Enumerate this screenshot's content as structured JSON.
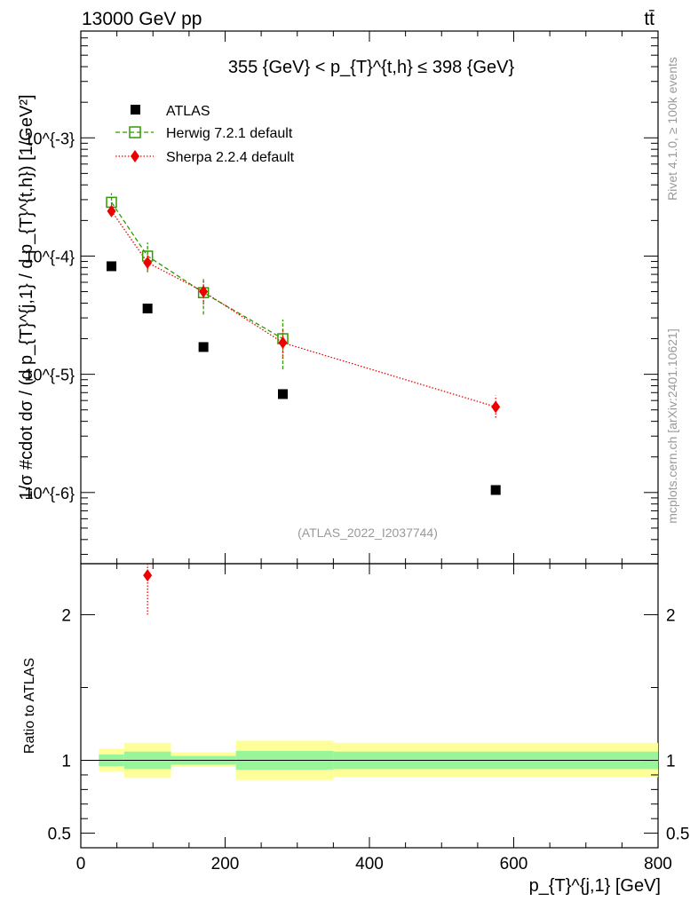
{
  "header": {
    "left": "13000 GeV pp",
    "right": "tt̄",
    "side_top": "Rivet 4.1.0, ≥ 100k events",
    "side_bottom": "mcplots.cern.ch [arXiv:2401.10621]"
  },
  "chart_data": [
    {
      "type": "scatter",
      "panel": "main",
      "title": "355 {GeV} < p_{T}^{t,h} ≤ 398 {GeV}",
      "ylabel": "1/σ #cdot dσ / (d p_{T}^{j,1} / d p_{T}^{t,h}) [1/GeV²]",
      "xlabel": "",
      "yscale": "log",
      "xlim": [
        0,
        800
      ],
      "ylim": [
        2.5e-07,
        0.008
      ],
      "y_ticks": [
        "10^{-6}",
        "10^{-5}",
        "10^{-4}",
        "10^{-3}"
      ],
      "watermark": "(ATLAS_2022_I2037744)",
      "legend_position": "top-left",
      "series": [
        {
          "name": "ATLAS",
          "color": "#000000",
          "marker": "square",
          "x": [
            42.5,
            92.5,
            170,
            280,
            575
          ],
          "values": [
            8.2e-05,
            3.6e-05,
            1.7e-05,
            6.8e-06,
            1.05e-06
          ]
        },
        {
          "name": "Herwig 7.2.1 default",
          "color": "#339900",
          "marker": "open-square",
          "line": "dashed",
          "x": [
            42.5,
            92.5,
            170,
            280
          ],
          "values": [
            0.000285,
            0.0001,
            4.9e-05,
            2e-05
          ],
          "err_low": [
            0.00024,
            7.5e-05,
            3.2e-05,
            1.1e-05
          ],
          "err_high": [
            0.00034,
            0.00013,
            6.6e-05,
            2.9e-05
          ]
        },
        {
          "name": "Sherpa 2.2.4 default",
          "color": "#ee0000",
          "marker": "diamond",
          "line": "dotted",
          "x": [
            42.5,
            92.5,
            170,
            280,
            575
          ],
          "values": [
            0.00024,
            8.8e-05,
            5e-05,
            1.85e-05,
            5.3e-06
          ],
          "err_low": [
            0.000215,
            7.3e-05,
            3.9e-05,
            1.35e-05,
            4.3e-06
          ],
          "err_high": [
            0.00027,
            0.000105,
            6.2e-05,
            2.4e-05,
            6.6e-06
          ]
        }
      ]
    },
    {
      "type": "area",
      "panel": "ratio",
      "ylabel": "Ratio to ATLAS",
      "xlabel": "p_{T}^{j,1} [GeV]",
      "xlim": [
        0,
        800
      ],
      "ylim": [
        0.4,
        2.35
      ],
      "x_ticks": [
        "0",
        "200",
        "400",
        "600",
        "800"
      ],
      "y_ticks": [
        "0.5",
        "1",
        "2"
      ],
      "bins": [
        {
          "lo": 25,
          "hi": 60,
          "inner": [
            0.96,
            1.04
          ],
          "outer": [
            0.925,
            1.08
          ]
        },
        {
          "lo": 60,
          "hi": 125,
          "inner": [
            0.94,
            1.06
          ],
          "outer": [
            0.88,
            1.12
          ]
        },
        {
          "lo": 125,
          "hi": 215,
          "inner": [
            0.97,
            1.03
          ],
          "outer": [
            0.955,
            1.055
          ]
        },
        {
          "lo": 215,
          "hi": 350,
          "inner": [
            0.935,
            1.065
          ],
          "outer": [
            0.865,
            1.135
          ]
        },
        {
          "lo": 350,
          "hi": 800,
          "inner": [
            0.94,
            1.06
          ],
          "outer": [
            0.885,
            1.12
          ]
        }
      ],
      "outlier": {
        "series": "Sherpa 2.2.4 default",
        "x": 92.5,
        "value": 2.27,
        "err_low": 2.0
      }
    }
  ]
}
